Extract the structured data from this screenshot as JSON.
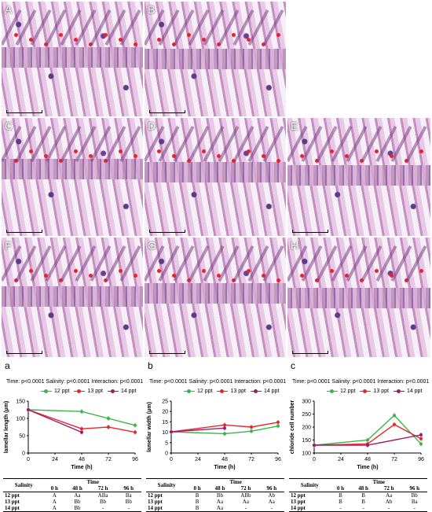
{
  "micrographs": [
    {
      "label": "A"
    },
    {
      "label": "B"
    },
    {
      "label": "C"
    },
    {
      "label": "D"
    },
    {
      "label": "E"
    },
    {
      "label": "F"
    },
    {
      "label": "G"
    },
    {
      "label": "H"
    }
  ],
  "series_names": [
    "12 ppt",
    "13 ppt",
    "14 ppt"
  ],
  "colors": {
    "s12": "#3cb44b",
    "s13": "#e6262d",
    "s14": "#a01a6b"
  },
  "charts": [
    {
      "letter": "a",
      "stats": "Time: p<0.0001   Salinity: p<0.0001   Interaction: p<0.0001",
      "chart_data": {
        "type": "line",
        "x": [
          0,
          48,
          72,
          96
        ],
        "xlabel": "Time (h)",
        "ylabel": "lamellar length (μm)",
        "ylim": [
          0,
          150
        ],
        "yticks": [
          0,
          50,
          100,
          150
        ],
        "xticks": [
          0,
          24,
          48,
          72,
          96
        ],
        "series": [
          {
            "name": "12 ppt",
            "values": [
              125,
              120,
              100,
              80
            ]
          },
          {
            "name": "13 ppt",
            "values": [
              125,
              70,
              75,
              60
            ]
          },
          {
            "name": "14 ppt",
            "values": [
              125,
              60,
              null,
              null
            ]
          }
        ]
      },
      "table": {
        "corner": "Salinity",
        "time_label": "Time",
        "cols": [
          "0 h",
          "48 h",
          "72 h",
          "96 h"
        ],
        "rows": [
          {
            "label": "12 ppt",
            "cells": [
              "A",
              "Aa",
              "ABa",
              "Ba"
            ]
          },
          {
            "label": "13 ppt",
            "cells": [
              "A",
              "Bb",
              "Bb",
              "Bb"
            ]
          },
          {
            "label": "14 ppt",
            "cells": [
              "A",
              "Bb",
              "-",
              "-"
            ]
          }
        ]
      }
    },
    {
      "letter": "b",
      "stats": "Time: p<0.0001   Salinity: p<0.0001   Interaction: p<0.0001",
      "chart_data": {
        "type": "line",
        "x": [
          0,
          48,
          72,
          96
        ],
        "xlabel": "Time (h)",
        "ylabel": "lamellar width (μm)",
        "ylim": [
          0,
          25
        ],
        "yticks": [
          0,
          5,
          10,
          15,
          20,
          25
        ],
        "xticks": [
          0,
          24,
          48,
          72,
          96
        ],
        "series": [
          {
            "name": "12 ppt",
            "values": [
              10.2,
              9.3,
              10.5,
              13.0
            ]
          },
          {
            "name": "13 ppt",
            "values": [
              10.2,
              13.5,
              12.5,
              14.8
            ]
          },
          {
            "name": "14 ppt",
            "values": [
              10.2,
              12.0,
              null,
              null
            ]
          }
        ]
      },
      "table": {
        "corner": "Salinity",
        "time_label": "Time",
        "cols": [
          "0 h",
          "48 h",
          "72 h",
          "96 h"
        ],
        "rows": [
          {
            "label": "12 ppt",
            "cells": [
              "B",
              "Bb",
              "ABb",
              "Ab"
            ]
          },
          {
            "label": "13 ppt",
            "cells": [
              "B",
              "Aa",
              "Aa",
              "Aa"
            ]
          },
          {
            "label": "14 ppt",
            "cells": [
              "B",
              "Aa",
              "-",
              "-"
            ]
          }
        ]
      }
    },
    {
      "letter": "c",
      "stats": "Time: p<0.0001   Salinity: p<0.0001   Interaction: p<0.0001",
      "chart_data": {
        "type": "line",
        "x": [
          0,
          48,
          72,
          96
        ],
        "xlabel": "Time (h)",
        "ylabel": "chloride cell number",
        "ylim": [
          100,
          300
        ],
        "yticks": [
          100,
          150,
          200,
          250,
          300
        ],
        "xticks": [
          0,
          24,
          48,
          72,
          96
        ],
        "series": [
          {
            "name": "12 ppt",
            "values": [
              130,
              150,
              245,
              135
            ]
          },
          {
            "name": "13 ppt",
            "values": [
              130,
              135,
              210,
              155
            ]
          },
          {
            "name": "14 ppt",
            "values": [
              130,
              130,
              null,
              170
            ]
          }
        ]
      },
      "table": {
        "corner": "Salinity",
        "time_label": "Time",
        "cols": [
          "0 h",
          "48 h",
          "72 h",
          "96 h"
        ],
        "rows": [
          {
            "label": "12 ppt",
            "cells": [
              "B",
              "B",
              "Aa",
              "Bb"
            ]
          },
          {
            "label": "13 ppt",
            "cells": [
              "B",
              "B",
              "Ab",
              "Ba"
            ]
          },
          {
            "label": "14 ppt",
            "cells": [
              "-",
              "-",
              "-",
              "-"
            ]
          }
        ]
      }
    }
  ]
}
